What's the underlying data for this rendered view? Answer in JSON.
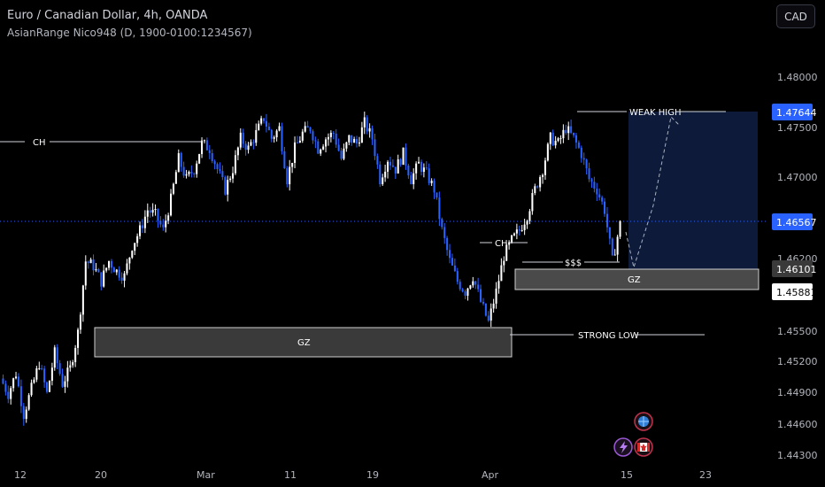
{
  "header": {
    "title": "Euro / Canadian Dollar, 4h, OANDA",
    "indicator": "AsianRange Nico948 (D, 1900-0100:1234567)",
    "currency_button": "CAD"
  },
  "colors": {
    "background": "#000000",
    "candle_up": "#ffffff",
    "candle_down": "#2962ff",
    "zone_fill": "#3a3a3a",
    "target_fill": "#0d1a3a",
    "current_price": "#2962ff"
  },
  "price_axis": {
    "ticks": [
      "1.48000",
      "1.47500",
      "1.47000",
      "1.46200",
      "1.45500",
      "1.45200",
      "1.44900",
      "1.44600",
      "1.44300"
    ],
    "labels": [
      {
        "value": "1.47644",
        "style": "blue"
      },
      {
        "value": "1.46567",
        "style": "blue"
      },
      {
        "value": "1.46101",
        "style": "gray"
      },
      {
        "value": "1.45881",
        "style": "white"
      }
    ]
  },
  "time_axis": {
    "ticks": [
      "12",
      "20",
      "Mar",
      "11",
      "19",
      "Apr",
      "15",
      "23"
    ]
  },
  "annotations": {
    "ch_left": "CH",
    "ch_right": "CH",
    "gz_left": "GZ",
    "gz_right": "GZ",
    "sss": "$$$",
    "weak_high": "WEAK HIGH",
    "strong_low": "STRONG LOW"
  },
  "icons": [
    "globe-icon",
    "lightning-icon",
    "canada-flag-icon"
  ],
  "chart_data": {
    "type": "candlestick",
    "symbol": "EURCAD",
    "timeframe": "4h",
    "current_price": 1.46567,
    "levels": {
      "weak_high": 1.47644,
      "strong_low": 1.4552,
      "ch_left": 1.4735,
      "ch_right": 1.4645,
      "liquidity_sss": 1.4618
    },
    "zones": [
      {
        "name": "GZ",
        "low": 1.4525,
        "high": 1.4556
      },
      {
        "name": "GZ",
        "low": 1.4588,
        "high": 1.461
      }
    ],
    "target_box": {
      "low": 1.461,
      "high": 1.47644
    },
    "close_path": [
      1.4505,
      1.449,
      1.451,
      1.447,
      1.4495,
      1.452,
      1.449,
      1.453,
      1.45,
      1.4515,
      1.455,
      1.462,
      1.4615,
      1.46,
      1.462,
      1.461,
      1.4605,
      1.4635,
      1.465,
      1.467,
      1.4665,
      1.465,
      1.468,
      1.472,
      1.47,
      1.471,
      1.4735,
      1.473,
      1.471,
      1.469,
      1.471,
      1.474,
      1.473,
      1.4745,
      1.476,
      1.474,
      1.475,
      1.47,
      1.473,
      1.4745,
      1.475,
      1.473,
      1.474,
      1.4745,
      1.472,
      1.474,
      1.4735,
      1.4755,
      1.474,
      1.47,
      1.472,
      1.471,
      1.4725,
      1.47,
      1.4715,
      1.4705,
      1.469,
      1.465,
      1.462,
      1.46,
      1.459,
      1.4605,
      1.458,
      1.456,
      1.459,
      1.4625,
      1.464,
      1.465,
      1.4665,
      1.469,
      1.471,
      1.474,
      1.4735,
      1.475,
      1.474,
      1.4725,
      1.47,
      1.469,
      1.467,
      1.462,
      1.4656
    ]
  }
}
